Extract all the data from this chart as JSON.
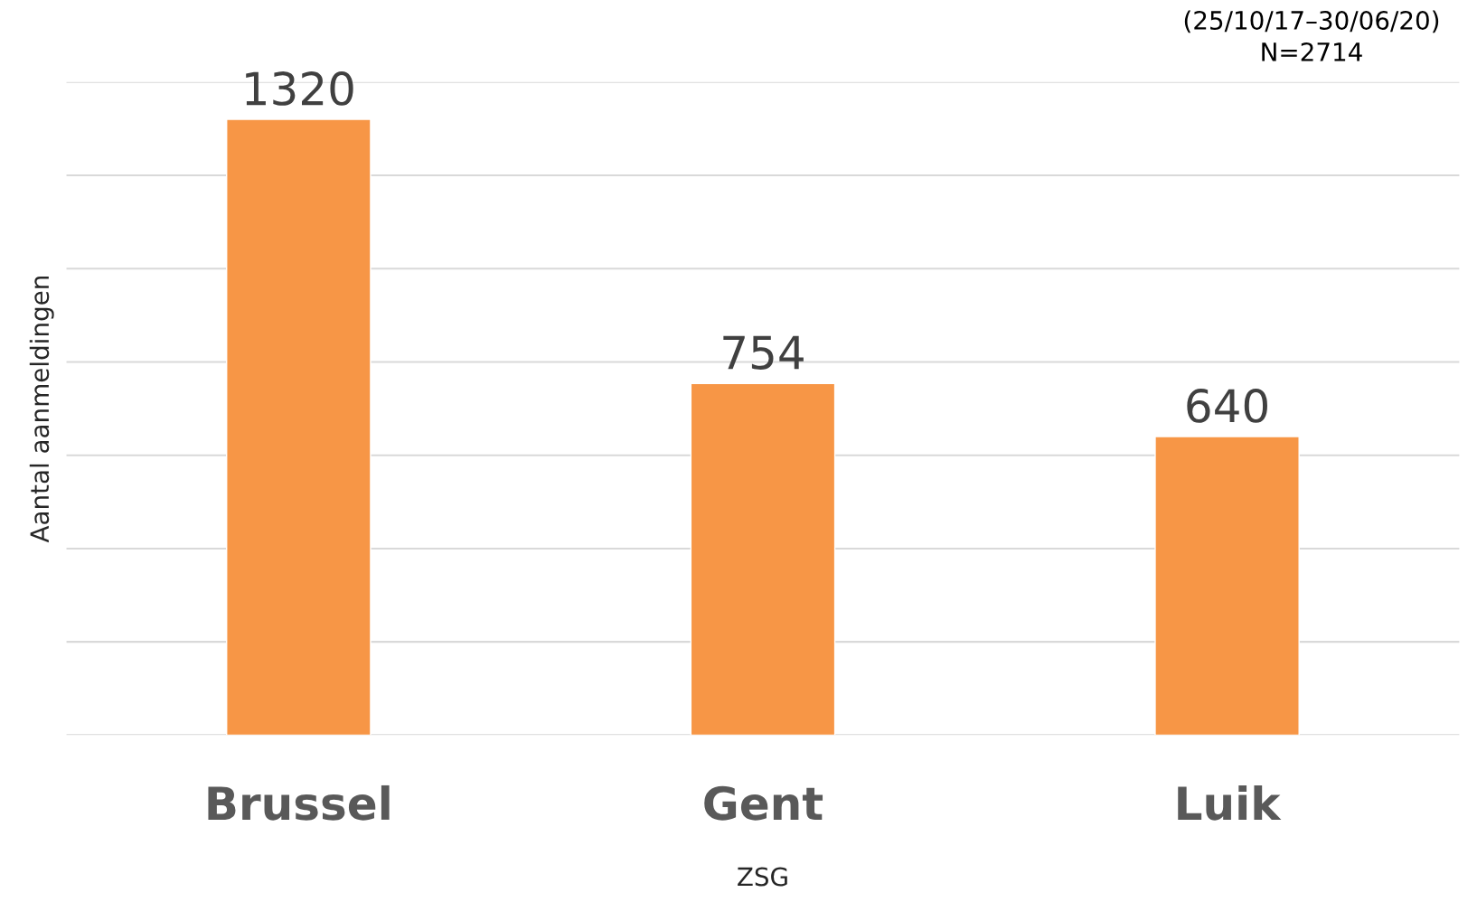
{
  "chart_data": {
    "type": "bar",
    "xlabel": "ZSG",
    "ylabel": "Aantal aanmeldingen",
    "categories": [
      "Brussel",
      "Gent",
      "Luik"
    ],
    "values": [
      1320,
      754,
      640
    ],
    "color": "#f79646",
    "ylim": [
      0,
      1400
    ],
    "yticks": [
      {
        "value": 0,
        "label": null
      },
      {
        "value": 200,
        "label": null
      },
      {
        "value": 400,
        "label": null
      },
      {
        "value": 600,
        "label": null
      },
      {
        "value": 800,
        "label": null
      },
      {
        "value": 1000,
        "label": null
      },
      {
        "value": 1200,
        "label": null
      },
      {
        "value": 1400,
        "label": null
      }
    ],
    "tick_labels": "x",
    "grid": "y",
    "data_labels": true,
    "legend": false,
    "annotations": [
      "(25/10/17–30/06/20)",
      "N=2714"
    ]
  }
}
